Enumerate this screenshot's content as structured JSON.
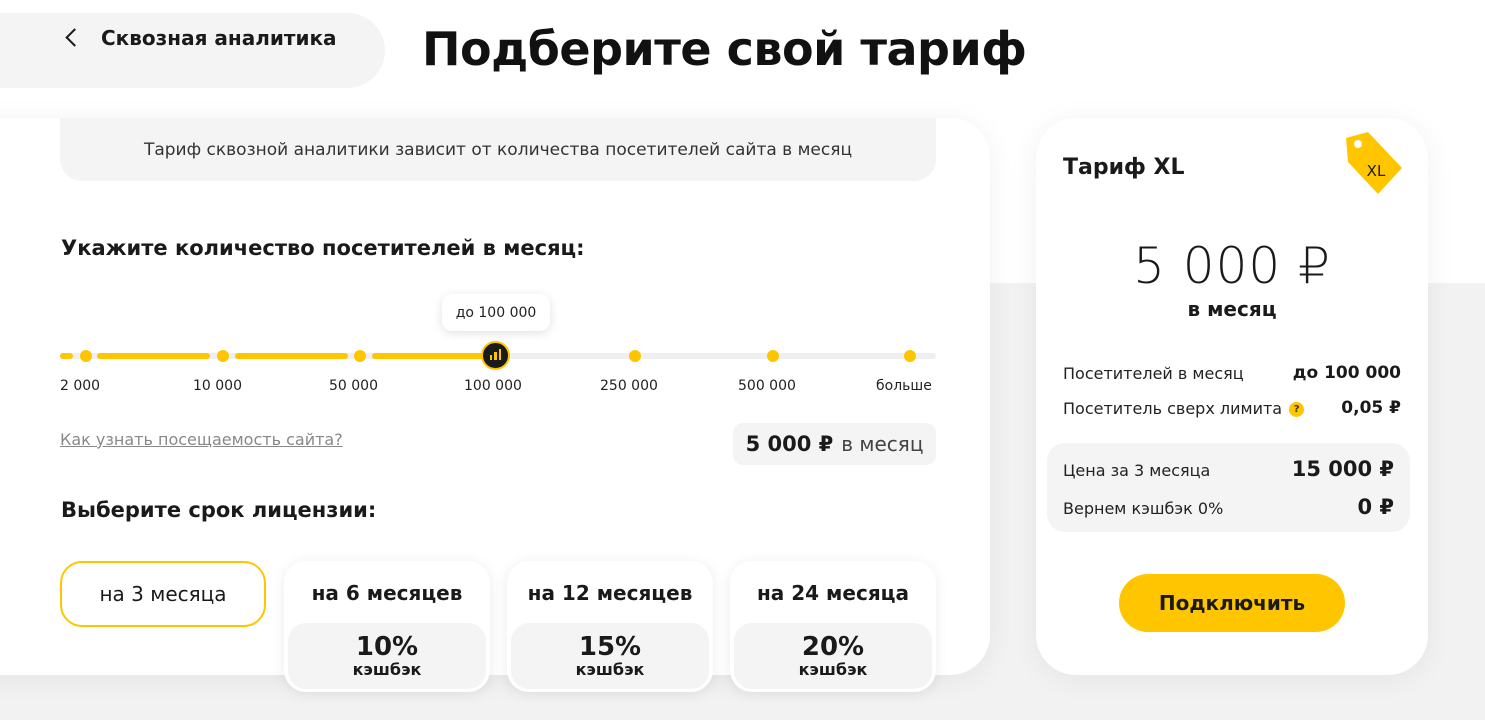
{
  "header": {
    "back_label": "Сквозная аналитика",
    "title": "Подберите свой тариф"
  },
  "info_text": "Тариф сквозной аналитики зависит от количества посетителей сайта в месяц",
  "visitors": {
    "title": "Укажите количество посетителей в месяц:",
    "tooltip": "до 100 000",
    "ticks": [
      "2 000",
      "10 000",
      "50 000",
      "100 000",
      "250 000",
      "500 000",
      "больше"
    ],
    "selected_index": 3,
    "link": "Как узнать посещаемость сайта?",
    "price_bold": "5 000 ₽",
    "price_suffix": "в месяц"
  },
  "license": {
    "title": "Выберите срок лицензии:",
    "options": [
      {
        "label": "на 3 месяца",
        "selected": true
      },
      {
        "label": "на 6 месяцев",
        "pct": "10%",
        "word": "кэшбэк"
      },
      {
        "label": "на 12 месяцев",
        "pct": "15%",
        "word": "кэшбэк"
      },
      {
        "label": "на 24 месяца",
        "pct": "20%",
        "word": "кэшбэк"
      }
    ]
  },
  "tariff": {
    "name": "Тариф XL",
    "tag": "XL",
    "price": "5 000 ₽",
    "per": "в месяц",
    "visitors_label": "Посетителей в месяц",
    "visitors_value": "до 100 000",
    "extra_label": "Посетитель сверх лимита",
    "extra_help": "?",
    "extra_value": "0,05 ₽",
    "period_label": "Цена за 3 месяца",
    "period_value": "15 000 ₽",
    "cashback_label": "Вернем кэшбэк 0%",
    "cashback_value": "0 ₽",
    "connect": "Подключить"
  },
  "colors": {
    "accent": "#ffc600",
    "text": "#1a1a1a",
    "panel": "#f4f4f4"
  }
}
